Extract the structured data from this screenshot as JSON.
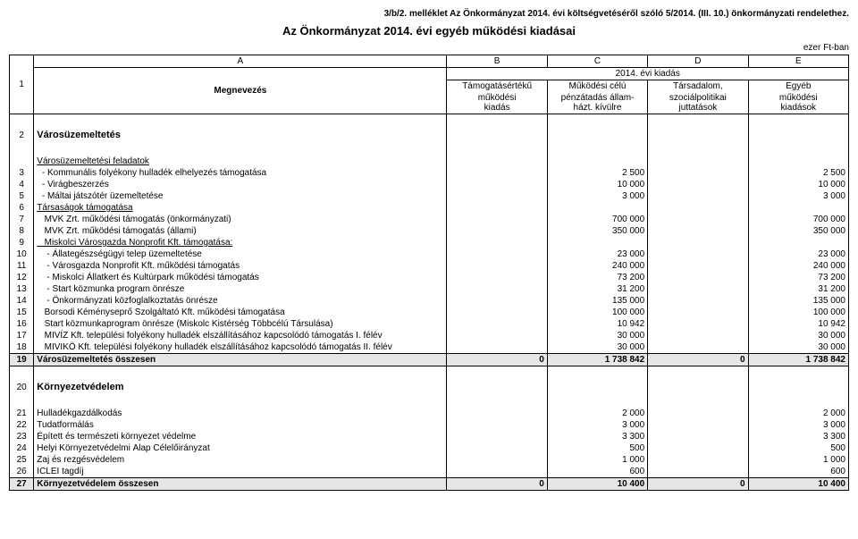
{
  "header": "3/b/2. melléklet Az Önkormányzat 2014. évi költségvetéséről szóló 5/2014. (III. 10.) önkormányzati rendelethez.",
  "title": "Az Önkormányzat 2014. évi egyéb működési kiadásai",
  "unit": "ezer Ft-ban",
  "columns": {
    "letters": [
      "A",
      "B",
      "C",
      "D",
      "E"
    ],
    "year": "2014. évi kiadás",
    "name": "Megnevezés",
    "b": [
      "Támogatásértékű",
      "működési",
      "kiadás"
    ],
    "c": [
      "Működési célú",
      "pénzátadás állam-",
      "házt. kívülre"
    ],
    "d": [
      "Társadalom,",
      "szociálpolitikai",
      "juttatások"
    ],
    "e": [
      "Egyéb",
      "működési",
      "kiadások"
    ]
  },
  "sections": [
    {
      "rownum": "2",
      "title": "Városüzemeltetés",
      "subhead": "Városüzemeltetési feladatok",
      "rows": [
        {
          "n": "3",
          "name": "  - Kommunális folyékony hulladék elhelyezés támogatása",
          "b": "",
          "c": "2 500",
          "d": "",
          "e": "2 500"
        },
        {
          "n": "4",
          "name": "  - Virágbeszerzés",
          "b": "",
          "c": "10 000",
          "d": "",
          "e": "10 000"
        },
        {
          "n": "5",
          "name": "  - Máltai játszótér üzemeltetése",
          "b": "",
          "c": "3 000",
          "d": "",
          "e": "3 000"
        },
        {
          "n": "6",
          "name": "Társaságok támogatása",
          "b": "",
          "c": "",
          "d": "",
          "e": "",
          "underl": true
        },
        {
          "n": "7",
          "name": "   MVK Zrt. működési támogatás (önkormányzati)",
          "b": "",
          "c": "700 000",
          "d": "",
          "e": "700 000"
        },
        {
          "n": "8",
          "name": "   MVK Zrt. működési támogatás (állami)",
          "b": "",
          "c": "350 000",
          "d": "",
          "e": "350 000"
        },
        {
          "n": "9",
          "name": "   Miskolci Városgazda Nonprofit Kft. támogatása:",
          "b": "",
          "c": "",
          "d": "",
          "e": "",
          "underl": true
        },
        {
          "n": "10",
          "name": "    - Állategészségügyi telep üzemeltetése",
          "b": "",
          "c": "23 000",
          "d": "",
          "e": "23 000"
        },
        {
          "n": "11",
          "name": "    - Városgazda Nonprofit Kft. működési támogatás",
          "b": "",
          "c": "240 000",
          "d": "",
          "e": "240 000"
        },
        {
          "n": "12",
          "name": "    - Miskolci Állatkert és Kultúrpark működési támogatás",
          "b": "",
          "c": "73 200",
          "d": "",
          "e": "73 200"
        },
        {
          "n": "13",
          "name": "    - Start közmunka program önrésze",
          "b": "",
          "c": "31 200",
          "d": "",
          "e": "31 200"
        },
        {
          "n": "14",
          "name": "    - Önkormányzati közfoglalkoztatás önrésze",
          "b": "",
          "c": "135 000",
          "d": "",
          "e": "135 000"
        },
        {
          "n": "15",
          "name": "   Borsodi Kéményseprő Szolgáltató Kft. működési támogatása",
          "b": "",
          "c": "100 000",
          "d": "",
          "e": "100 000"
        },
        {
          "n": "16",
          "name": "   Start közmunkaprogram önrésze (Miskolc Kistérség Többcélú Társulása)",
          "b": "",
          "c": "10 942",
          "d": "",
          "e": "10 942"
        },
        {
          "n": "17",
          "name": "   MIVÍZ Kft. települési folyékony hulladék elszállításához kapcsolódó támogatás I. félév",
          "b": "",
          "c": "30 000",
          "d": "",
          "e": "30 000"
        },
        {
          "n": "18",
          "name": "   MIVIKÖ Kft. települési folyékony hulladék elszállításához kapcsolódó támogatás II. félév",
          "b": "",
          "c": "30 000",
          "d": "",
          "e": "30 000"
        }
      ],
      "total": {
        "n": "19",
        "name": "Városüzemeltetés összesen",
        "b": "0",
        "c": "1 738 842",
        "d": "0",
        "e": "1 738 842"
      }
    },
    {
      "rownum": "20",
      "title": "Környezetvédelem",
      "subhead": "",
      "rows": [
        {
          "n": "21",
          "name": "Hulladékgazdálkodás",
          "b": "",
          "c": "2 000",
          "d": "",
          "e": "2 000"
        },
        {
          "n": "22",
          "name": "Tudatformálás",
          "b": "",
          "c": "3 000",
          "d": "",
          "e": "3 000"
        },
        {
          "n": "23",
          "name": "Épített és természeti környezet védelme",
          "b": "",
          "c": "3 300",
          "d": "",
          "e": "3 300"
        },
        {
          "n": "24",
          "name": "Helyi Környezetvédelmi Alap Célelőirányzat",
          "b": "",
          "c": "500",
          "d": "",
          "e": "500"
        },
        {
          "n": "25",
          "name": "Zaj és rezgésvédelem",
          "b": "",
          "c": "1 000",
          "d": "",
          "e": "1 000"
        },
        {
          "n": "26",
          "name": "ICLEI tagdíj",
          "b": "",
          "c": "600",
          "d": "",
          "e": "600"
        }
      ],
      "total": {
        "n": "27",
        "name": "Környezetvédelem összesen",
        "b": "0",
        "c": "10 400",
        "d": "0",
        "e": "10 400"
      }
    }
  ]
}
